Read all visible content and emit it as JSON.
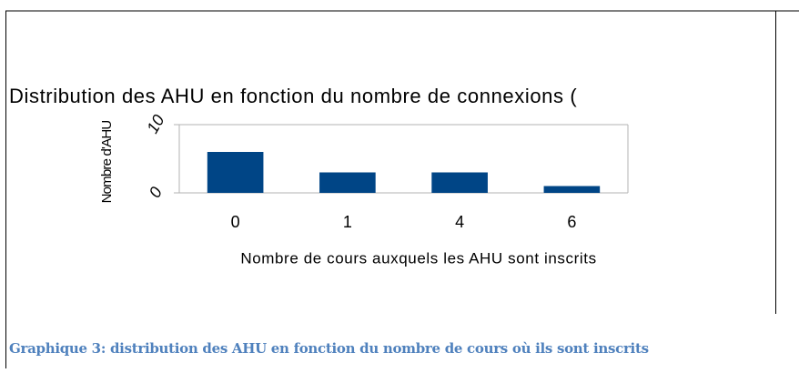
{
  "chart_data": {
    "type": "bar",
    "title": "Distribution des AHU en fonction du nombre de connexions (",
    "x_label": "Nombre de cours auxquels les AHU sont inscrits",
    "y_label": "Nombre d'AHU",
    "categories": [
      "0",
      "1",
      "4",
      "6"
    ],
    "values": [
      6,
      3,
      3,
      1
    ],
    "color": "#004586",
    "ylim": [
      0,
      10
    ],
    "yticks": [
      0,
      10
    ],
    "grid": true
  },
  "caption": "Graphique 3: distribution des AHU en fonction du nombre de cours où ils sont inscrits"
}
